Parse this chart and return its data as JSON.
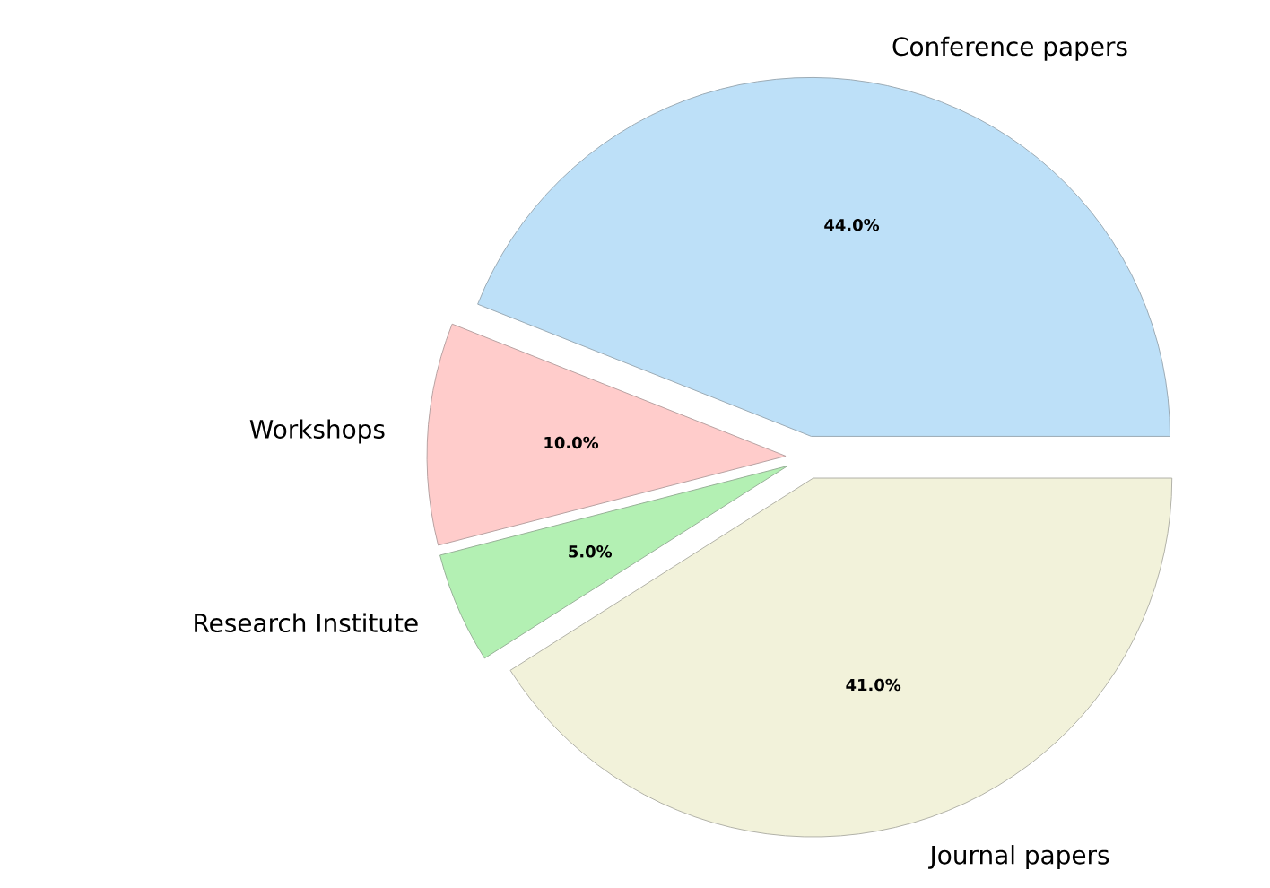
{
  "chart_data": {
    "type": "pie",
    "categories": [
      "Conference papers",
      "Workshops",
      "Research Institute",
      "Journal papers"
    ],
    "values": [
      44,
      10,
      5,
      41
    ],
    "colors": [
      "#bde0f8",
      "#ffcccb",
      "#b3f0b3",
      "#f2f2da"
    ],
    "value_labels": [
      "44.0%",
      "10.0%",
      "5.0%",
      "41.0%"
    ]
  }
}
